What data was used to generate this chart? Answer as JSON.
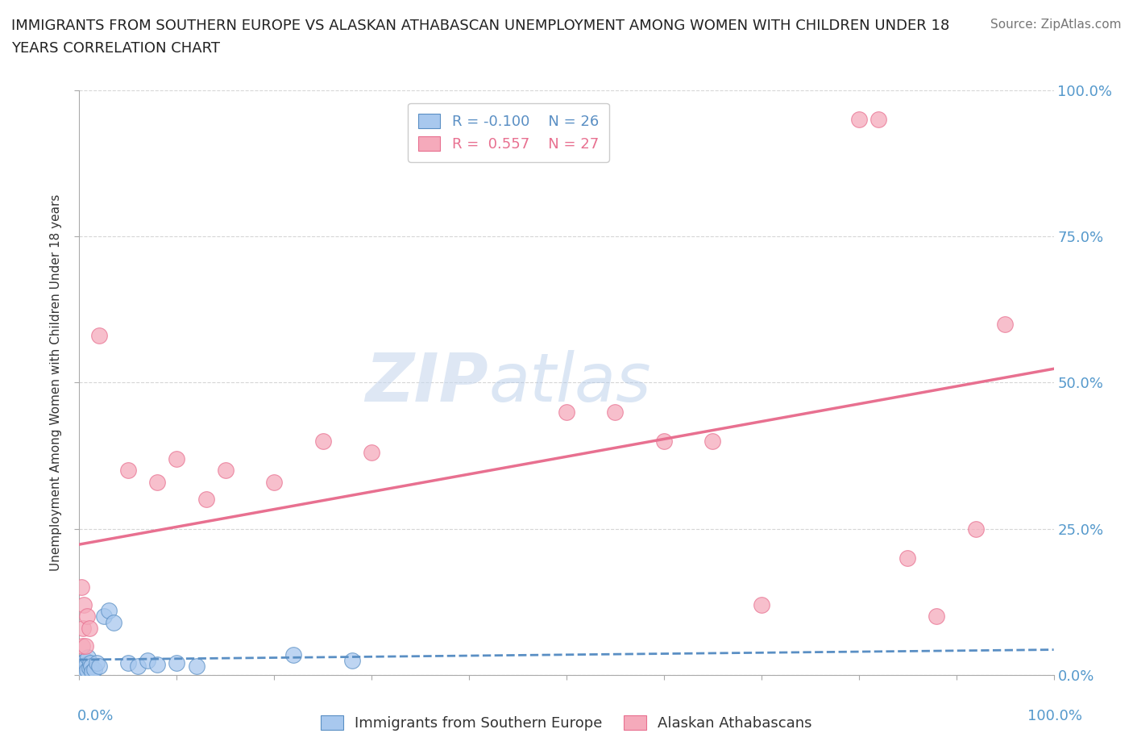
{
  "title_line1": "IMMIGRANTS FROM SOUTHERN EUROPE VS ALASKAN ATHABASCAN UNEMPLOYMENT AMONG WOMEN WITH CHILDREN UNDER 18",
  "title_line2": "YEARS CORRELATION CHART",
  "source": "Source: ZipAtlas.com",
  "ylabel": "Unemployment Among Women with Children Under 18 years",
  "ytick_values": [
    0,
    25,
    50,
    75,
    100
  ],
  "xlim": [
    0,
    100
  ],
  "ylim": [
    0,
    100
  ],
  "legend_r1": "R = -0.100",
  "legend_n1": "N = 26",
  "legend_r2": "R =  0.557",
  "legend_n2": "N = 27",
  "watermark_zip": "ZIP",
  "watermark_atlas": "atlas",
  "blue_color": "#a8c8ee",
  "pink_color": "#f5aabb",
  "blue_line_color": "#5a8fc4",
  "pink_line_color": "#e87090",
  "axis_label_color": "#5599cc",
  "blue_scatter": [
    [
      0.2,
      1.5
    ],
    [
      0.3,
      2.0
    ],
    [
      0.4,
      1.0
    ],
    [
      0.5,
      0.5
    ],
    [
      0.6,
      2.5
    ],
    [
      0.7,
      1.8
    ],
    [
      0.8,
      0.8
    ],
    [
      0.9,
      3.0
    ],
    [
      1.0,
      1.2
    ],
    [
      1.1,
      2.0
    ],
    [
      1.2,
      1.5
    ],
    [
      1.3,
      0.5
    ],
    [
      1.5,
      1.0
    ],
    [
      1.8,
      2.0
    ],
    [
      2.0,
      1.5
    ],
    [
      2.5,
      10.0
    ],
    [
      3.0,
      11.0
    ],
    [
      3.5,
      9.0
    ],
    [
      5.0,
      2.0
    ],
    [
      6.0,
      1.5
    ],
    [
      7.0,
      2.5
    ],
    [
      8.0,
      1.8
    ],
    [
      10.0,
      2.0
    ],
    [
      12.0,
      1.5
    ],
    [
      22.0,
      3.5
    ],
    [
      28.0,
      2.5
    ]
  ],
  "pink_scatter": [
    [
      0.2,
      15.0
    ],
    [
      0.3,
      5.0
    ],
    [
      0.4,
      8.0
    ],
    [
      0.5,
      12.0
    ],
    [
      0.6,
      5.0
    ],
    [
      0.8,
      10.0
    ],
    [
      1.0,
      8.0
    ],
    [
      2.0,
      58.0
    ],
    [
      5.0,
      35.0
    ],
    [
      8.0,
      33.0
    ],
    [
      10.0,
      37.0
    ],
    [
      13.0,
      30.0
    ],
    [
      15.0,
      35.0
    ],
    [
      20.0,
      33.0
    ],
    [
      50.0,
      45.0
    ],
    [
      55.0,
      45.0
    ],
    [
      60.0,
      40.0
    ],
    [
      65.0,
      40.0
    ],
    [
      70.0,
      12.0
    ],
    [
      80.0,
      95.0
    ],
    [
      82.0,
      95.0
    ],
    [
      85.0,
      20.0
    ],
    [
      88.0,
      10.0
    ],
    [
      92.0,
      25.0
    ],
    [
      95.0,
      60.0
    ],
    [
      25.0,
      40.0
    ],
    [
      30.0,
      38.0
    ]
  ],
  "background_color": "#ffffff",
  "grid_color": "#cccccc"
}
